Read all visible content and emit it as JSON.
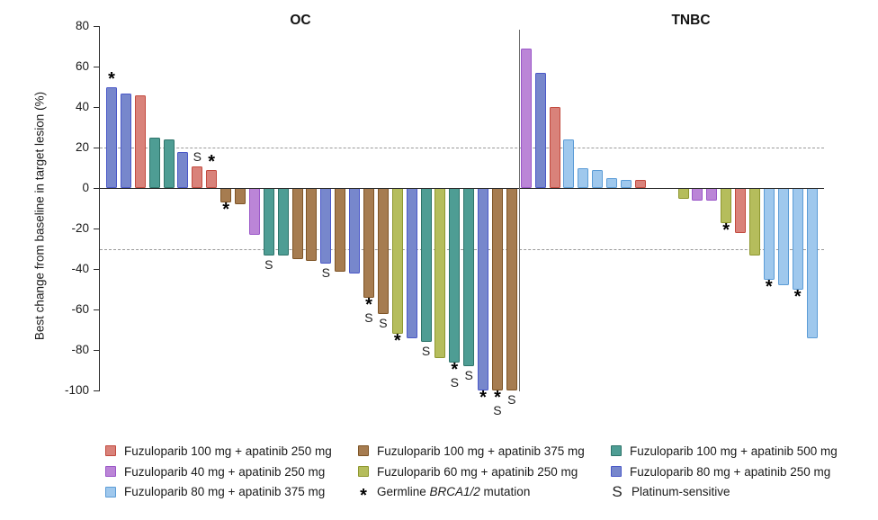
{
  "chart_data": {
    "type": "bar",
    "title": "",
    "ylabel": "Best change from baseline in target lesion (%)",
    "ylim": [
      -100,
      80
    ],
    "yticks": [
      80,
      60,
      40,
      20,
      0,
      -20,
      -40,
      -60,
      -80,
      -100
    ],
    "reference_lines": {
      "upper_dashed": 20,
      "lower_dashed": -30
    },
    "grid": "off",
    "legend_position": "bottom",
    "groups": [
      {
        "label": "OC",
        "bars": [
          {
            "v": 50,
            "s": "f80a250",
            "m": "*"
          },
          {
            "v": 47,
            "s": "f80a250",
            "m": ""
          },
          {
            "v": 46,
            "s": "f100a250",
            "m": ""
          },
          {
            "v": 25,
            "s": "f100a500",
            "m": ""
          },
          {
            "v": 24,
            "s": "f100a500",
            "m": ""
          },
          {
            "v": 18,
            "s": "f80a250",
            "m": ""
          },
          {
            "v": 11,
            "s": "f100a250",
            "m": "S"
          },
          {
            "v": 9,
            "s": "f100a250",
            "m": "*"
          },
          {
            "v": -7,
            "s": "f100a375",
            "m": "*"
          },
          {
            "v": -8,
            "s": "f100a375",
            "m": ""
          },
          {
            "v": -23,
            "s": "f40a250",
            "m": ""
          },
          {
            "v": -33,
            "s": "f100a500",
            "m": "S"
          },
          {
            "v": -33,
            "s": "f100a500",
            "m": ""
          },
          {
            "v": -35,
            "s": "f100a375",
            "m": ""
          },
          {
            "v": -36,
            "s": "f100a375",
            "m": ""
          },
          {
            "v": -37,
            "s": "f80a250",
            "m": "S"
          },
          {
            "v": -41,
            "s": "f100a375",
            "m": ""
          },
          {
            "v": -42,
            "s": "f80a250",
            "m": ""
          },
          {
            "v": -54,
            "s": "f100a375",
            "m": "*S"
          },
          {
            "v": -62,
            "s": "f100a375",
            "m": "S"
          },
          {
            "v": -72,
            "s": "f60a250",
            "m": "*"
          },
          {
            "v": -74,
            "s": "f80a250",
            "m": ""
          },
          {
            "v": -76,
            "s": "f100a500",
            "m": "S"
          },
          {
            "v": -84,
            "s": "f60a250",
            "m": ""
          },
          {
            "v": -86,
            "s": "f100a500",
            "m": "*S"
          },
          {
            "v": -88,
            "s": "f100a500",
            "m": "S"
          },
          {
            "v": -100,
            "s": "f80a250",
            "m": "*"
          },
          {
            "v": -100,
            "s": "f100a375",
            "m": "*S"
          },
          {
            "v": -100,
            "s": "f100a375",
            "m": "S"
          }
        ]
      },
      {
        "label": "TNBC",
        "bars": [
          {
            "v": 69,
            "s": "f40a250",
            "m": ""
          },
          {
            "v": 57,
            "s": "f80a250",
            "m": ""
          },
          {
            "v": 40,
            "s": "f100a250",
            "m": ""
          },
          {
            "v": 24,
            "s": "f80a375",
            "m": ""
          },
          {
            "v": 10,
            "s": "f80a375",
            "m": ""
          },
          {
            "v": 9,
            "s": "f80a375",
            "m": ""
          },
          {
            "v": 5,
            "s": "f80a375",
            "m": ""
          },
          {
            "v": 4,
            "s": "f80a375",
            "m": ""
          },
          {
            "v": 4,
            "s": "f100a250",
            "m": ""
          },
          {
            "v": 0,
            "s": "none",
            "m": ""
          },
          {
            "v": 0,
            "s": "none",
            "m": ""
          },
          {
            "v": -5,
            "s": "f60a250",
            "m": ""
          },
          {
            "v": -6,
            "s": "f40a250",
            "m": ""
          },
          {
            "v": -6,
            "s": "f40a250",
            "m": ""
          },
          {
            "v": -17,
            "s": "f60a250",
            "m": "*"
          },
          {
            "v": -22,
            "s": "f100a250",
            "m": ""
          },
          {
            "v": -33,
            "s": "f60a250",
            "m": ""
          },
          {
            "v": -45,
            "s": "f80a375",
            "m": "*"
          },
          {
            "v": -48,
            "s": "f80a375",
            "m": ""
          },
          {
            "v": -50,
            "s": "f80a375",
            "m": "*"
          },
          {
            "v": -74,
            "s": "f80a375",
            "m": ""
          }
        ]
      }
    ],
    "legend": {
      "series": {
        "f100a250": {
          "label": "Fuzuloparib 100 mg + apatinib 250 mg",
          "fill": "#D9827A",
          "stroke": "#C24A3F"
        },
        "f100a375": {
          "label": "Fuzuloparib 100 mg + apatinib 375 mg",
          "fill": "#A67C50",
          "stroke": "#7E5426"
        },
        "f100a500": {
          "label": "Fuzuloparib 100 mg + apatinib 500 mg",
          "fill": "#4E9D94",
          "stroke": "#2E746A"
        },
        "f40a250": {
          "label": "Fuzuloparib 40 mg + apatinib 250 mg",
          "fill": "#BB85D7",
          "stroke": "#9A57C8"
        },
        "f60a250": {
          "label": "Fuzuloparib 60 mg + apatinib 250 mg",
          "fill": "#B5BD5C",
          "stroke": "#8E972F"
        },
        "f80a250": {
          "label": "Fuzuloparib 80 mg + apatinib 250 mg",
          "fill": "#7787CC",
          "stroke": "#4A58C8"
        },
        "f80a375": {
          "label": "Fuzuloparib 80 mg + apatinib 375 mg",
          "fill": "#9FC8ED",
          "stroke": "#5C9CD6"
        }
      },
      "columns": [
        [
          "f100a250",
          "f40a250",
          "f80a375"
        ],
        [
          "f100a375",
          "f60a250",
          "*"
        ],
        [
          "f100a500",
          "f80a250",
          "S"
        ]
      ],
      "star": {
        "glyph": "*",
        "label_parts": [
          "Germline ",
          "BRCA1/2",
          " mutation"
        ],
        "italic_part": 1
      },
      "s": {
        "glyph": "S",
        "label": "Platinum-sensitive"
      }
    }
  }
}
